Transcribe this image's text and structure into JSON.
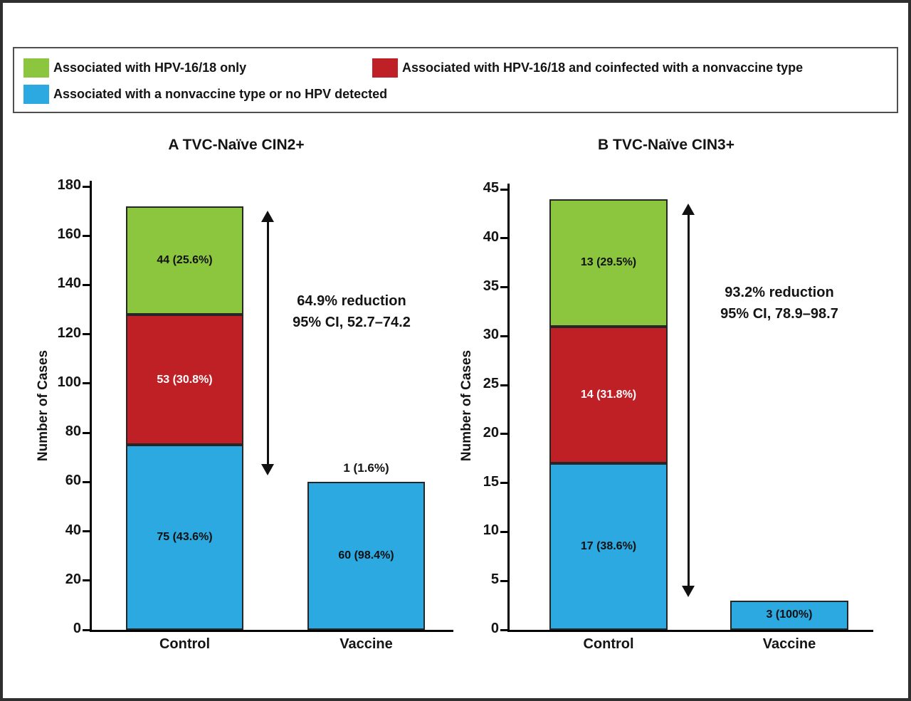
{
  "legend": {
    "items": [
      {
        "label": "Associated with HPV-16/18 only",
        "color": "green"
      },
      {
        "label": "Associated with HPV-16/18 and coinfected with a nonvaccine type",
        "color": "red"
      },
      {
        "label": "Associated with a nonvaccine type or no HPV detected",
        "color": "blue"
      }
    ]
  },
  "colors": {
    "green": "#8CC63F",
    "red": "#BE2026",
    "blue": "#2BA9E0",
    "axis": "#000000",
    "text": "#141414"
  },
  "chart_data": [
    {
      "type": "bar",
      "subtype": "stacked",
      "title": "A TVC-Naïve CIN2+",
      "ylabel": "Number of Cases",
      "ylim": [
        0,
        180
      ],
      "ytick_step": 20,
      "grid": false,
      "legend_position": "top",
      "categories": [
        "Control",
        "Vaccine"
      ],
      "series": [
        {
          "name": "Associated with a nonvaccine type or no HPV detected",
          "color": "blue",
          "values": [
            75,
            60
          ],
          "segment_labels": [
            "75 (43.6%)",
            "60 (98.4%)"
          ]
        },
        {
          "name": "Associated with HPV-16/18 and coinfected with a nonvaccine type",
          "color": "red",
          "values": [
            53,
            0
          ],
          "segment_labels": [
            "53 (30.8%)",
            ""
          ]
        },
        {
          "name": "Associated with HPV-16/18 only",
          "color": "green",
          "values": [
            44,
            0
          ],
          "segment_labels": [
            "44 (25.6%)",
            ""
          ]
        }
      ],
      "above_bar_labels": [
        "",
        "1 (1.6%)"
      ],
      "reduction_annotation": [
        "64.9% reduction",
        "95% CI, 52.7–74.2"
      ],
      "arrow_span": [
        172,
        62
      ]
    },
    {
      "type": "bar",
      "subtype": "stacked",
      "title": "B TVC-Naïve CIN3+",
      "ylabel": "Number of Cases",
      "ylim": [
        0,
        45
      ],
      "ytick_step": 5,
      "grid": false,
      "legend_position": "top",
      "categories": [
        "Control",
        "Vaccine"
      ],
      "series": [
        {
          "name": "Associated with a nonvaccine type or no HPV detected",
          "color": "blue",
          "values": [
            17,
            3
          ],
          "segment_labels": [
            "17 (38.6%)",
            "3 (100%)"
          ]
        },
        {
          "name": "Associated with HPV-16/18 and coinfected with a nonvaccine type",
          "color": "red",
          "values": [
            14,
            0
          ],
          "segment_labels": [
            "14 (31.8%)",
            ""
          ]
        },
        {
          "name": "Associated with HPV-16/18 only",
          "color": "green",
          "values": [
            13,
            0
          ],
          "segment_labels": [
            "13 (29.5%)",
            ""
          ]
        }
      ],
      "above_bar_labels": [
        "",
        ""
      ],
      "reduction_annotation": [
        "93.2% reduction",
        "95% CI, 78.9–98.7"
      ],
      "arrow_span": [
        44,
        3.2
      ]
    }
  ]
}
